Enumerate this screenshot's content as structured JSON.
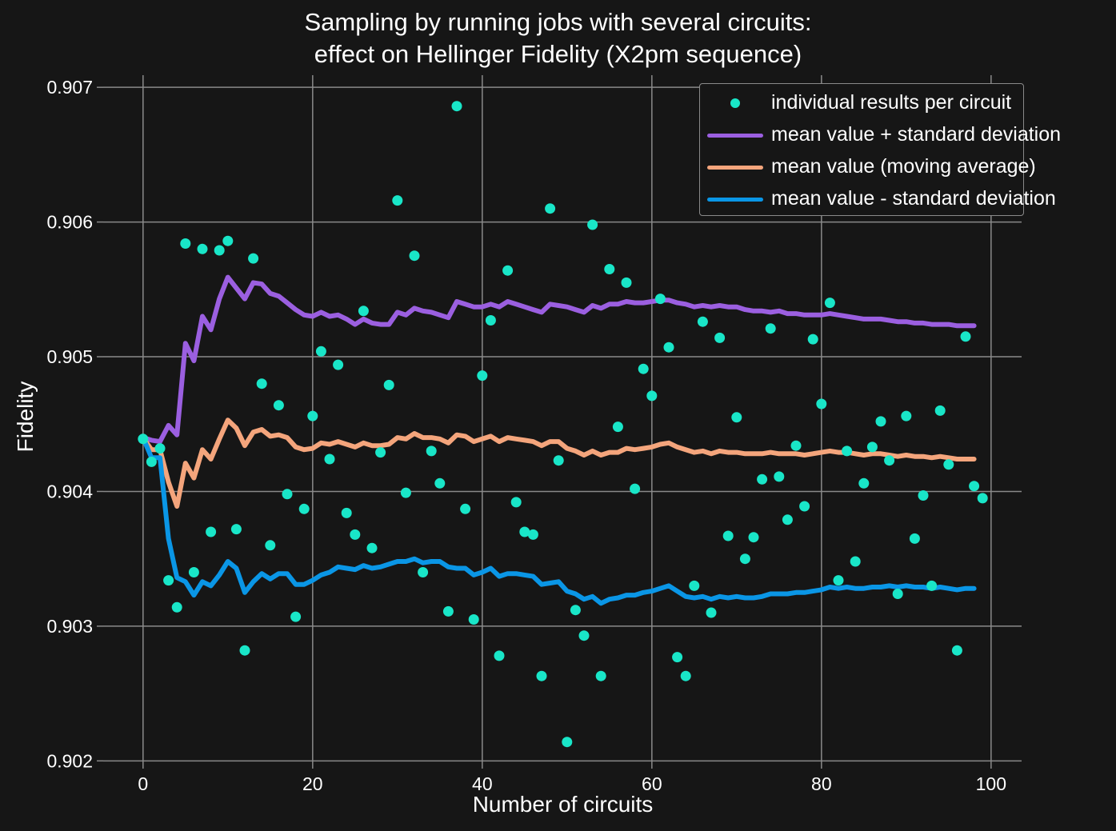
{
  "chart_data": {
    "type": "scatter",
    "title_line1": "Sampling by running jobs with several circuits:",
    "title_line2": "effect on Hellinger Fidelity (X2pm sequence)",
    "xlabel": "Number of circuits",
    "ylabel": "Fidelity",
    "xlim": [
      -4.7,
      103.6
    ],
    "ylim": [
      0.90199,
      0.90709
    ],
    "grid": true,
    "legend_placement": "top-right",
    "x_ticks": [
      {
        "value": 0,
        "label": "0"
      },
      {
        "value": 20,
        "label": "20"
      },
      {
        "value": 40,
        "label": "40"
      },
      {
        "value": 60,
        "label": "60"
      },
      {
        "value": 80,
        "label": "80"
      },
      {
        "value": 100,
        "label": "100"
      }
    ],
    "y_ticks": [
      {
        "value": 0.902,
        "label": "0.902"
      },
      {
        "value": 0.903,
        "label": "0.903"
      },
      {
        "value": 0.904,
        "label": "0.904"
      },
      {
        "value": 0.905,
        "label": "0.905"
      },
      {
        "value": 0.906,
        "label": "0.906"
      },
      {
        "value": 0.907,
        "label": "0.907"
      }
    ],
    "colors": {
      "background": "#161616",
      "grid": "#8a8a8a",
      "points": "#19e6c8",
      "upper": "#9b5fe0",
      "mean": "#f4a57c",
      "lower": "#0a96e6"
    },
    "series": [
      {
        "name": "individual results per circuit",
        "kind": "points",
        "color": "#19e6c8",
        "x": [
          0,
          1,
          2,
          3,
          4,
          5,
          6,
          7,
          8,
          9,
          10,
          11,
          12,
          13,
          14,
          15,
          16,
          17,
          18,
          19,
          20,
          21,
          22,
          23,
          24,
          25,
          26,
          27,
          28,
          29,
          30,
          31,
          32,
          33,
          34,
          35,
          36,
          37,
          38,
          39,
          40,
          41,
          42,
          43,
          44,
          45,
          46,
          47,
          48,
          49,
          50,
          51,
          52,
          53,
          54,
          55,
          56,
          57,
          58,
          59,
          60,
          61,
          62,
          63,
          64,
          65,
          66,
          67,
          68,
          69,
          70,
          71,
          72,
          73,
          74,
          75,
          76,
          77,
          78,
          79,
          80,
          81,
          82,
          83,
          84,
          85,
          86,
          87,
          88,
          89,
          90,
          91,
          92,
          93,
          94,
          95,
          96,
          97,
          98,
          99
        ],
        "values": [
          0.90439,
          0.90422,
          0.90432,
          0.90334,
          0.90314,
          0.90584,
          0.9034,
          0.9058,
          0.9037,
          0.90579,
          0.90586,
          0.90372,
          0.90282,
          0.90573,
          0.9048,
          0.9036,
          0.90464,
          0.90398,
          0.90307,
          0.90387,
          0.90456,
          0.90504,
          0.90424,
          0.90494,
          0.90384,
          0.90368,
          0.90534,
          0.90358,
          0.90429,
          0.90479,
          0.90616,
          0.90399,
          0.90575,
          0.9034,
          0.9043,
          0.90406,
          0.90311,
          0.90686,
          0.90387,
          0.90305,
          0.90486,
          0.90527,
          0.90278,
          0.90564,
          0.90392,
          0.9037,
          0.90368,
          0.90263,
          0.9061,
          0.90423,
          0.90214,
          0.90312,
          0.90293,
          0.90598,
          0.90263,
          0.90565,
          0.90448,
          0.90555,
          0.90402,
          0.90491,
          0.90471,
          0.90543,
          0.90507,
          0.90277,
          0.90263,
          0.9033,
          0.90526,
          0.9031,
          0.90514,
          0.90367,
          0.90455,
          0.9035,
          0.90366,
          0.90409,
          0.90521,
          0.90411,
          0.90379,
          0.90434,
          0.90389,
          0.90513,
          0.90465,
          0.9054,
          0.90334,
          0.9043,
          0.90348,
          0.90406,
          0.90433,
          0.90452,
          0.90423,
          0.90324,
          0.90456,
          0.90365,
          0.90397,
          0.9033,
          0.9046,
          0.9042,
          0.90282,
          0.90515,
          0.90404,
          0.90395
        ]
      },
      {
        "name": "mean value + standard deviation",
        "kind": "line",
        "color": "#9b5fe0",
        "x": [
          0,
          1,
          2,
          3,
          4,
          5,
          6,
          7,
          8,
          9,
          10,
          11,
          12,
          13,
          14,
          15,
          16,
          17,
          18,
          19,
          20,
          21,
          22,
          23,
          24,
          25,
          26,
          27,
          28,
          29,
          30,
          31,
          32,
          33,
          34,
          35,
          36,
          37,
          38,
          39,
          40,
          41,
          42,
          43,
          44,
          45,
          46,
          47,
          48,
          49,
          50,
          51,
          52,
          53,
          54,
          55,
          56,
          57,
          58,
          59,
          60,
          61,
          62,
          63,
          64,
          65,
          66,
          67,
          68,
          69,
          70,
          71,
          72,
          73,
          74,
          75,
          76,
          77,
          78,
          79,
          80,
          81,
          82,
          83,
          84,
          85,
          86,
          87,
          88,
          89,
          90,
          91,
          92,
          93,
          94,
          95,
          96,
          97,
          98
        ],
        "values": [
          0.9044,
          0.90438,
          0.90437,
          0.90449,
          0.90442,
          0.9051,
          0.90497,
          0.9053,
          0.9052,
          0.90543,
          0.90559,
          0.90551,
          0.90543,
          0.90555,
          0.90554,
          0.90547,
          0.90545,
          0.9054,
          0.90535,
          0.90531,
          0.9053,
          0.90533,
          0.9053,
          0.90531,
          0.90528,
          0.90524,
          0.90528,
          0.90525,
          0.90524,
          0.90524,
          0.90533,
          0.90531,
          0.90536,
          0.90534,
          0.90533,
          0.90531,
          0.90529,
          0.90541,
          0.90539,
          0.90537,
          0.90537,
          0.90539,
          0.90537,
          0.90541,
          0.90539,
          0.90537,
          0.90535,
          0.90533,
          0.90539,
          0.90538,
          0.90537,
          0.90535,
          0.90533,
          0.90538,
          0.90536,
          0.90539,
          0.90539,
          0.90541,
          0.9054,
          0.9054,
          0.90541,
          0.90542,
          0.90542,
          0.9054,
          0.90539,
          0.90537,
          0.90538,
          0.90537,
          0.90538,
          0.90537,
          0.90537,
          0.90535,
          0.90534,
          0.90534,
          0.90533,
          0.90534,
          0.90532,
          0.90532,
          0.90531,
          0.90531,
          0.90531,
          0.90532,
          0.90531,
          0.9053,
          0.90529,
          0.90528,
          0.90528,
          0.90528,
          0.90527,
          0.90526,
          0.90526,
          0.90525,
          0.90525,
          0.90524,
          0.90524,
          0.90524,
          0.90523,
          0.90523,
          0.90523
        ]
      },
      {
        "name": "mean value (moving average)",
        "kind": "line",
        "color": "#f4a57c",
        "x": [
          0,
          1,
          2,
          3,
          4,
          5,
          6,
          7,
          8,
          9,
          10,
          11,
          12,
          13,
          14,
          15,
          16,
          17,
          18,
          19,
          20,
          21,
          22,
          23,
          24,
          25,
          26,
          27,
          28,
          29,
          30,
          31,
          32,
          33,
          34,
          35,
          36,
          37,
          38,
          39,
          40,
          41,
          42,
          43,
          44,
          45,
          46,
          47,
          48,
          49,
          50,
          51,
          52,
          53,
          54,
          55,
          56,
          57,
          58,
          59,
          60,
          61,
          62,
          63,
          64,
          65,
          66,
          67,
          68,
          69,
          70,
          71,
          72,
          73,
          74,
          75,
          76,
          77,
          78,
          79,
          80,
          81,
          82,
          83,
          84,
          85,
          86,
          87,
          88,
          89,
          90,
          91,
          92,
          93,
          94,
          95,
          96,
          97,
          98
        ],
        "values": [
          0.9044,
          0.90431,
          0.90431,
          0.90407,
          0.90389,
          0.90421,
          0.9041,
          0.90431,
          0.90424,
          0.90439,
          0.90453,
          0.90447,
          0.90434,
          0.90444,
          0.90446,
          0.90441,
          0.90442,
          0.9044,
          0.90433,
          0.90431,
          0.90432,
          0.90436,
          0.90435,
          0.90437,
          0.90435,
          0.90433,
          0.90436,
          0.90434,
          0.90434,
          0.90435,
          0.9044,
          0.90439,
          0.90443,
          0.9044,
          0.9044,
          0.90439,
          0.90436,
          0.90442,
          0.90441,
          0.90437,
          0.90439,
          0.90441,
          0.90437,
          0.9044,
          0.90439,
          0.90438,
          0.90437,
          0.90434,
          0.90437,
          0.90437,
          0.90432,
          0.9043,
          0.90427,
          0.9043,
          0.90427,
          0.90429,
          0.90429,
          0.90432,
          0.90431,
          0.90432,
          0.90433,
          0.90435,
          0.90436,
          0.90433,
          0.90431,
          0.90429,
          0.9043,
          0.90428,
          0.9043,
          0.90429,
          0.90429,
          0.90428,
          0.90428,
          0.90428,
          0.90429,
          0.90428,
          0.90428,
          0.90428,
          0.90427,
          0.90428,
          0.90429,
          0.9043,
          0.90429,
          0.90429,
          0.90428,
          0.90427,
          0.90428,
          0.90428,
          0.90427,
          0.90426,
          0.90427,
          0.90426,
          0.90426,
          0.90425,
          0.90426,
          0.90425,
          0.90424,
          0.90424,
          0.90424
        ]
      },
      {
        "name": "mean value - standard deviation",
        "kind": "line",
        "color": "#0a96e6",
        "x": [
          0,
          1,
          2,
          3,
          4,
          5,
          6,
          7,
          8,
          9,
          10,
          11,
          12,
          13,
          14,
          15,
          16,
          17,
          18,
          19,
          20,
          21,
          22,
          23,
          24,
          25,
          26,
          27,
          28,
          29,
          30,
          31,
          32,
          33,
          34,
          35,
          36,
          37,
          38,
          39,
          40,
          41,
          42,
          43,
          44,
          45,
          46,
          47,
          48,
          49,
          50,
          51,
          52,
          53,
          54,
          55,
          56,
          57,
          58,
          59,
          60,
          61,
          62,
          63,
          64,
          65,
          66,
          67,
          68,
          69,
          70,
          71,
          72,
          73,
          74,
          75,
          76,
          77,
          78,
          79,
          80,
          81,
          82,
          83,
          84,
          85,
          86,
          87,
          88,
          89,
          90,
          91,
          92,
          93,
          94,
          95,
          96,
          97,
          98
        ],
        "values": [
          0.9044,
          0.90425,
          0.90425,
          0.90365,
          0.90336,
          0.90333,
          0.90323,
          0.90333,
          0.9033,
          0.90338,
          0.90348,
          0.90343,
          0.90325,
          0.90333,
          0.90339,
          0.90335,
          0.90339,
          0.90339,
          0.90331,
          0.90331,
          0.90334,
          0.90338,
          0.9034,
          0.90344,
          0.90343,
          0.90342,
          0.90345,
          0.90343,
          0.90344,
          0.90346,
          0.90348,
          0.90348,
          0.9035,
          0.90347,
          0.90348,
          0.90348,
          0.90344,
          0.90343,
          0.90343,
          0.90338,
          0.9034,
          0.90343,
          0.90337,
          0.90339,
          0.90339,
          0.90338,
          0.90337,
          0.90331,
          0.90332,
          0.90333,
          0.90326,
          0.90324,
          0.9032,
          0.90322,
          0.90317,
          0.9032,
          0.90321,
          0.90323,
          0.90323,
          0.90325,
          0.90326,
          0.90328,
          0.9033,
          0.90326,
          0.90322,
          0.90321,
          0.90322,
          0.9032,
          0.90322,
          0.90321,
          0.90322,
          0.90321,
          0.90321,
          0.90322,
          0.90324,
          0.90324,
          0.90324,
          0.90325,
          0.90325,
          0.90326,
          0.90327,
          0.90329,
          0.90328,
          0.90329,
          0.90328,
          0.90328,
          0.90329,
          0.90329,
          0.9033,
          0.90329,
          0.9033,
          0.90329,
          0.90329,
          0.90328,
          0.90329,
          0.90328,
          0.90327,
          0.90328,
          0.90328
        ]
      }
    ]
  }
}
